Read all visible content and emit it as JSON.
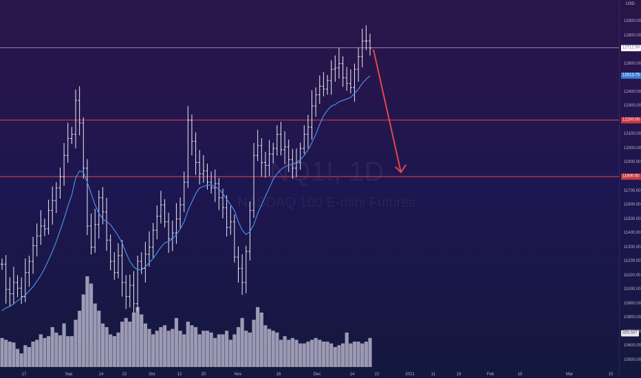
{
  "chart_data": {
    "type": "ohlc",
    "symbol": "NQ1!, 1D",
    "description": "NASDAQ 100 E-mini Futures",
    "currency": "USD",
    "y_ticks": [
      "12900.00",
      "12800.00",
      "12700.00",
      "12600.00",
      "12500.00",
      "12400.00",
      "12300.00",
      "12200.00",
      "12100.00",
      "12000.00",
      "11900.00",
      "11800.00",
      "11700.00",
      "11600.00",
      "11500.00",
      "11400.00",
      "11300.00",
      "11200.00",
      "11100.00",
      "11000.00",
      "10900.00",
      "10800.00",
      "10700.00",
      "10600.00",
      "10500.00"
    ],
    "x_ticks": [
      "17",
      "Sep",
      "14",
      "22",
      "Oct",
      "12",
      "20",
      "Nov",
      "16",
      "Dec",
      "14",
      "22",
      "2021",
      "11",
      "19",
      "Feb",
      "15",
      "Mar",
      "15"
    ],
    "horizontal_levels": [
      {
        "name": "current price line",
        "value": 12712.5,
        "label": "12712.50",
        "color": "#8f84b3"
      },
      {
        "name": "resistance",
        "value": 12200.0,
        "label": "12200.00",
        "color": "#e5484d"
      },
      {
        "name": "support",
        "value": 11800.0,
        "label": "11800.00",
        "color": "#e5484d"
      }
    ],
    "ma_label": {
      "value": 12513.75,
      "label": "12513.75",
      "color": "#4a8fe7"
    },
    "volume_label": "455.587",
    "arrow": {
      "from_value": 12700,
      "to_value": 11830,
      "color": "#e5484d"
    },
    "closes": [
      11180,
      11000,
      10970,
      11050,
      11010,
      10950,
      11120,
      11200,
      11310,
      11380,
      11450,
      11430,
      11560,
      11630,
      11720,
      11800,
      11950,
      12070,
      12100,
      12340,
      12180,
      11860,
      11450,
      11300,
      11460,
      11650,
      11550,
      11350,
      11200,
      11120,
      11240,
      11050,
      10950,
      11030,
      10900,
      11200,
      11150,
      11250,
      11300,
      11420,
      11520,
      11600,
      11480,
      11360,
      11400,
      11500,
      11600,
      11760,
      12200,
      12050,
      11900,
      11820,
      11840,
      11760,
      11720,
      11750,
      11650,
      11580,
      11440,
      11480,
      11230,
      11150,
      11050,
      11270,
      11560,
      11950,
      12020,
      11900,
      11880,
      11960,
      12000,
      12100,
      11990,
      12010,
      11920,
      11860,
      11900,
      12000,
      12100,
      12150,
      12300,
      12380,
      12440,
      12420,
      12480,
      12560,
      12570,
      12600,
      12500,
      12460,
      12430,
      12560,
      12650,
      12760,
      12760,
      12710
    ],
    "ma": [
      10850,
      10870,
      10880,
      10900,
      10920,
      10940,
      10960,
      10990,
      11020,
      11060,
      11100,
      11150,
      11210,
      11270,
      11340,
      11420,
      11500,
      11590,
      11670,
      11790,
      11840,
      11830,
      11760,
      11680,
      11600,
      11540,
      11500,
      11480,
      11460,
      11420,
      11380,
      11330,
      11260,
      11200,
      11160,
      11140,
      11140,
      11160,
      11190,
      11220,
      11260,
      11300,
      11330,
      11340,
      11360,
      11390,
      11430,
      11480,
      11560,
      11620,
      11680,
      11720,
      11730,
      11740,
      11740,
      11730,
      11710,
      11680,
      11640,
      11600,
      11560,
      11480,
      11420,
      11390,
      11410,
      11460,
      11540,
      11600,
      11660,
      11720,
      11780,
      11820,
      11850,
      11870,
      11880,
      11890,
      11900,
      11920,
      11950,
      11990,
      12040,
      12100,
      12170,
      12230,
      12270,
      12300,
      12310,
      12330,
      12340,
      12350,
      12360,
      12390,
      12420,
      12460,
      12490,
      12513
    ],
    "volume": [
      0.32,
      0.3,
      0.28,
      0.27,
      0.2,
      0.15,
      0.24,
      0.22,
      0.28,
      0.3,
      0.36,
      0.32,
      0.34,
      0.44,
      0.38,
      0.35,
      0.48,
      0.34,
      0.34,
      0.52,
      0.62,
      0.8,
      1.0,
      0.92,
      0.7,
      0.62,
      0.48,
      0.44,
      0.36,
      0.34,
      0.38,
      0.5,
      0.54,
      0.5,
      0.6,
      0.66,
      0.58,
      0.48,
      0.42,
      0.36,
      0.4,
      0.44,
      0.46,
      0.4,
      0.42,
      0.54,
      0.4,
      0.36,
      0.5,
      0.46,
      0.44,
      0.36,
      0.4,
      0.4,
      0.38,
      0.32,
      0.36,
      0.36,
      0.4,
      0.3,
      0.36,
      0.44,
      0.54,
      0.4,
      0.38,
      0.52,
      0.66,
      0.6,
      0.46,
      0.42,
      0.4,
      0.38,
      0.3,
      0.34,
      0.3,
      0.32,
      0.3,
      0.26,
      0.26,
      0.28,
      0.3,
      0.32,
      0.3,
      0.28,
      0.28,
      0.26,
      0.22,
      0.24,
      0.26,
      0.38,
      0.26,
      0.28,
      0.28,
      0.26,
      0.28,
      0.32
    ]
  }
}
